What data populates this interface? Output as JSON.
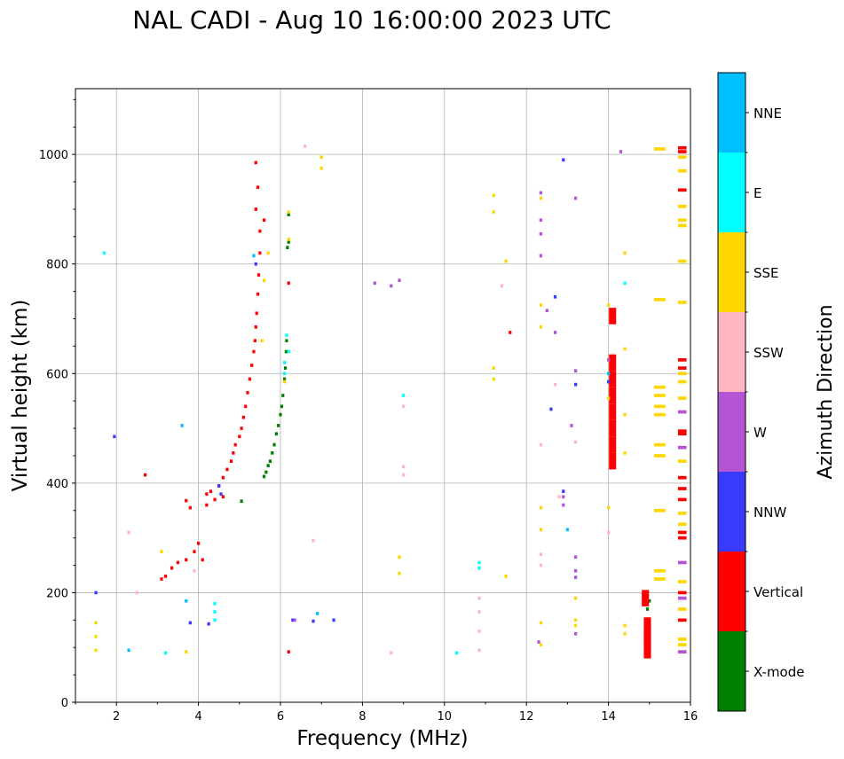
{
  "chart_data": {
    "type": "scatter",
    "title": "NAL CADI - Aug 10 16:00:00 2023 UTC",
    "xlabel": "Frequency (MHz)",
    "ylabel": "Virtual height (km)",
    "xlim": [
      1,
      16
    ],
    "ylim": [
      0,
      1120
    ],
    "x_ticks": [
      2,
      4,
      6,
      8,
      10,
      12,
      14,
      16
    ],
    "y_ticks": [
      0,
      200,
      400,
      600,
      800,
      1000
    ],
    "x_tick_labels": [
      "2",
      "4",
      "6",
      "8",
      "10",
      "12",
      "14",
      "16"
    ],
    "y_tick_labels": [
      "0",
      "200",
      "400",
      "600",
      "800",
      "1000"
    ],
    "grid": true,
    "colorbar": {
      "label": "Azimuth Direction",
      "entries": [
        {
          "name": "X-mode",
          "color": "#008000"
        },
        {
          "name": "Vertical",
          "color": "#ff0000"
        },
        {
          "name": "NNW",
          "color": "#3a3aff"
        },
        {
          "name": "W",
          "color": "#b355d4"
        },
        {
          "name": "SSW",
          "color": "#ffb6c1"
        },
        {
          "name": "SSE",
          "color": "#ffd700"
        },
        {
          "name": "E",
          "color": "#00ffff"
        },
        {
          "name": "NNE",
          "color": "#00bfff"
        }
      ]
    },
    "cell_size": {
      "df_mhz": 0.05,
      "dh_km": 6
    },
    "series": [
      {
        "name": "X-mode",
        "points": [
          [
            5.05,
            367
          ],
          [
            5.6,
            412
          ],
          [
            5.65,
            420
          ],
          [
            5.7,
            432
          ],
          [
            5.75,
            440
          ],
          [
            5.8,
            455
          ],
          [
            5.85,
            470
          ],
          [
            5.9,
            490
          ],
          [
            5.95,
            505
          ],
          [
            6.0,
            525
          ],
          [
            6.03,
            540
          ],
          [
            6.06,
            560
          ],
          [
            6.1,
            590
          ],
          [
            6.12,
            610
          ],
          [
            6.14,
            640
          ],
          [
            6.15,
            660
          ],
          [
            6.17,
            830
          ],
          [
            6.2,
            840
          ],
          [
            6.2,
            890
          ],
          [
            14.9,
            180
          ],
          [
            14.95,
            170
          ],
          [
            15.0,
            185
          ]
        ]
      },
      {
        "name": "Vertical",
        "points": [
          [
            2.7,
            415
          ],
          [
            3.1,
            225
          ],
          [
            3.2,
            230
          ],
          [
            3.35,
            245
          ],
          [
            3.5,
            255
          ],
          [
            3.7,
            260
          ],
          [
            3.7,
            368
          ],
          [
            3.8,
            355
          ],
          [
            3.9,
            275
          ],
          [
            4.0,
            290
          ],
          [
            4.1,
            260
          ],
          [
            4.2,
            360
          ],
          [
            4.2,
            380
          ],
          [
            4.3,
            385
          ],
          [
            4.4,
            370
          ],
          [
            4.5,
            395
          ],
          [
            4.6,
            375
          ],
          [
            4.6,
            410
          ],
          [
            4.7,
            425
          ],
          [
            4.8,
            440
          ],
          [
            4.85,
            455
          ],
          [
            4.9,
            470
          ],
          [
            5.0,
            485
          ],
          [
            5.05,
            500
          ],
          [
            5.1,
            520
          ],
          [
            5.15,
            540
          ],
          [
            5.2,
            565
          ],
          [
            5.25,
            590
          ],
          [
            5.3,
            615
          ],
          [
            5.35,
            640
          ],
          [
            5.38,
            660
          ],
          [
            5.4,
            685
          ],
          [
            5.42,
            710
          ],
          [
            5.45,
            745
          ],
          [
            5.47,
            780
          ],
          [
            5.5,
            820
          ],
          [
            5.5,
            860
          ],
          [
            5.4,
            900
          ],
          [
            5.45,
            940
          ],
          [
            5.4,
            985
          ],
          [
            5.6,
            880
          ],
          [
            6.2,
            765
          ],
          [
            6.2,
            92
          ],
          [
            11.6,
            675
          ],
          [
            14.1,
            705
          ],
          [
            14.1,
            440
          ],
          [
            14.1,
            470
          ],
          [
            14.1,
            500
          ],
          [
            14.1,
            530
          ],
          [
            14.1,
            560
          ],
          [
            14.1,
            590
          ],
          [
            14.1,
            620
          ],
          [
            14.95,
            95
          ],
          [
            14.95,
            110
          ],
          [
            14.95,
            125
          ],
          [
            14.95,
            140
          ],
          [
            14.9,
            190
          ],
          [
            15.8,
            150
          ],
          [
            15.8,
            200
          ],
          [
            15.8,
            300
          ],
          [
            15.8,
            310
          ],
          [
            15.8,
            370
          ],
          [
            15.8,
            390
          ],
          [
            15.8,
            410
          ],
          [
            15.8,
            490
          ],
          [
            15.8,
            495
          ],
          [
            15.8,
            610
          ],
          [
            15.8,
            625
          ],
          [
            15.8,
            935
          ],
          [
            15.8,
            1005
          ],
          [
            15.8,
            1012
          ]
        ]
      },
      {
        "name": "NNW",
        "points": [
          [
            1.5,
            200
          ],
          [
            1.95,
            485
          ],
          [
            3.8,
            145
          ],
          [
            4.25,
            143
          ],
          [
            4.5,
            395
          ],
          [
            4.55,
            380
          ],
          [
            5.4,
            800
          ],
          [
            6.3,
            150
          ],
          [
            6.8,
            148
          ],
          [
            7.3,
            150
          ],
          [
            12.9,
            990
          ],
          [
            12.9,
            385
          ],
          [
            12.6,
            535
          ],
          [
            12.7,
            740
          ],
          [
            13.2,
            580
          ],
          [
            14.0,
            585
          ]
        ]
      },
      {
        "name": "W",
        "points": [
          [
            6.35,
            150
          ],
          [
            8.3,
            765
          ],
          [
            8.7,
            760
          ],
          [
            8.9,
            770
          ],
          [
            12.3,
            110
          ],
          [
            12.35,
            815
          ],
          [
            12.35,
            855
          ],
          [
            12.35,
            880
          ],
          [
            12.35,
            930
          ],
          [
            12.5,
            715
          ],
          [
            12.7,
            675
          ],
          [
            12.9,
            375
          ],
          [
            12.9,
            360
          ],
          [
            13.1,
            505
          ],
          [
            13.2,
            920
          ],
          [
            13.2,
            605
          ],
          [
            13.2,
            265
          ],
          [
            13.2,
            240
          ],
          [
            13.2,
            228
          ],
          [
            13.2,
            125
          ],
          [
            14.0,
            625
          ],
          [
            14.3,
            1005
          ],
          [
            15.8,
            92
          ],
          [
            15.8,
            190
          ],
          [
            15.8,
            255
          ],
          [
            15.8,
            465
          ],
          [
            15.8,
            530
          ]
        ]
      },
      {
        "name": "SSW",
        "points": [
          [
            2.3,
            310
          ],
          [
            2.5,
            200
          ],
          [
            3.9,
            240
          ],
          [
            6.6,
            1015
          ],
          [
            6.8,
            295
          ],
          [
            8.7,
            90
          ],
          [
            9.0,
            430
          ],
          [
            9.0,
            415
          ],
          [
            9.0,
            540
          ],
          [
            10.85,
            95
          ],
          [
            10.85,
            130
          ],
          [
            10.85,
            165
          ],
          [
            10.85,
            190
          ],
          [
            11.4,
            760
          ],
          [
            12.35,
            270
          ],
          [
            12.35,
            250
          ],
          [
            12.35,
            470
          ],
          [
            12.7,
            580
          ],
          [
            12.8,
            375
          ],
          [
            13.2,
            475
          ],
          [
            14.0,
            310
          ]
        ]
      },
      {
        "name": "SSE",
        "points": [
          [
            1.5,
            95
          ],
          [
            1.5,
            120
          ],
          [
            1.5,
            145
          ],
          [
            3.1,
            275
          ],
          [
            3.7,
            92
          ],
          [
            5.6,
            770
          ],
          [
            5.55,
            660
          ],
          [
            5.7,
            820
          ],
          [
            6.1,
            585
          ],
          [
            6.2,
            895
          ],
          [
            6.2,
            845
          ],
          [
            7.0,
            995
          ],
          [
            7.0,
            975
          ],
          [
            8.9,
            265
          ],
          [
            8.9,
            235
          ],
          [
            11.2,
            925
          ],
          [
            11.2,
            895
          ],
          [
            11.2,
            610
          ],
          [
            11.2,
            590
          ],
          [
            11.5,
            805
          ],
          [
            11.5,
            230
          ],
          [
            12.35,
            725
          ],
          [
            12.35,
            685
          ],
          [
            12.35,
            920
          ],
          [
            12.35,
            355
          ],
          [
            12.35,
            315
          ],
          [
            12.35,
            145
          ],
          [
            12.35,
            105
          ],
          [
            13.2,
            190
          ],
          [
            13.2,
            150
          ],
          [
            13.2,
            140
          ],
          [
            14.0,
            555
          ],
          [
            14.0,
            725
          ],
          [
            14.0,
            355
          ],
          [
            14.4,
            820
          ],
          [
            14.4,
            645
          ],
          [
            14.4,
            525
          ],
          [
            14.4,
            455
          ],
          [
            14.4,
            140
          ],
          [
            14.4,
            125
          ],
          [
            15.25,
            1010
          ],
          [
            15.25,
            735
          ],
          [
            15.25,
            575
          ],
          [
            15.25,
            560
          ],
          [
            15.25,
            540
          ],
          [
            15.25,
            525
          ],
          [
            15.25,
            470
          ],
          [
            15.25,
            450
          ],
          [
            15.25,
            350
          ],
          [
            15.25,
            240
          ],
          [
            15.25,
            225
          ],
          [
            15.8,
            995
          ],
          [
            15.8,
            970
          ],
          [
            15.8,
            905
          ],
          [
            15.8,
            880
          ],
          [
            15.8,
            870
          ],
          [
            15.8,
            805
          ],
          [
            15.8,
            730
          ],
          [
            15.8,
            600
          ],
          [
            15.8,
            585
          ],
          [
            15.8,
            555
          ],
          [
            15.8,
            440
          ],
          [
            15.8,
            325
          ],
          [
            15.8,
            345
          ],
          [
            15.8,
            220
          ],
          [
            15.8,
            170
          ],
          [
            15.8,
            115
          ],
          [
            15.8,
            105
          ]
        ]
      },
      {
        "name": "E",
        "points": [
          [
            1.7,
            820
          ],
          [
            3.2,
            90
          ],
          [
            4.4,
            150
          ],
          [
            4.4,
            165
          ],
          [
            4.4,
            180
          ],
          [
            6.1,
            600
          ],
          [
            6.1,
            620
          ],
          [
            6.15,
            670
          ],
          [
            6.2,
            640
          ],
          [
            9.0,
            560
          ],
          [
            10.3,
            90
          ],
          [
            10.85,
            245
          ],
          [
            10.85,
            255
          ],
          [
            14.4,
            765
          ]
        ]
      },
      {
        "name": "NNE",
        "points": [
          [
            2.3,
            95
          ],
          [
            3.6,
            505
          ],
          [
            3.7,
            185
          ],
          [
            5.35,
            815
          ],
          [
            6.9,
            162
          ],
          [
            13.0,
            315
          ],
          [
            14.0,
            600
          ]
        ]
      }
    ]
  }
}
